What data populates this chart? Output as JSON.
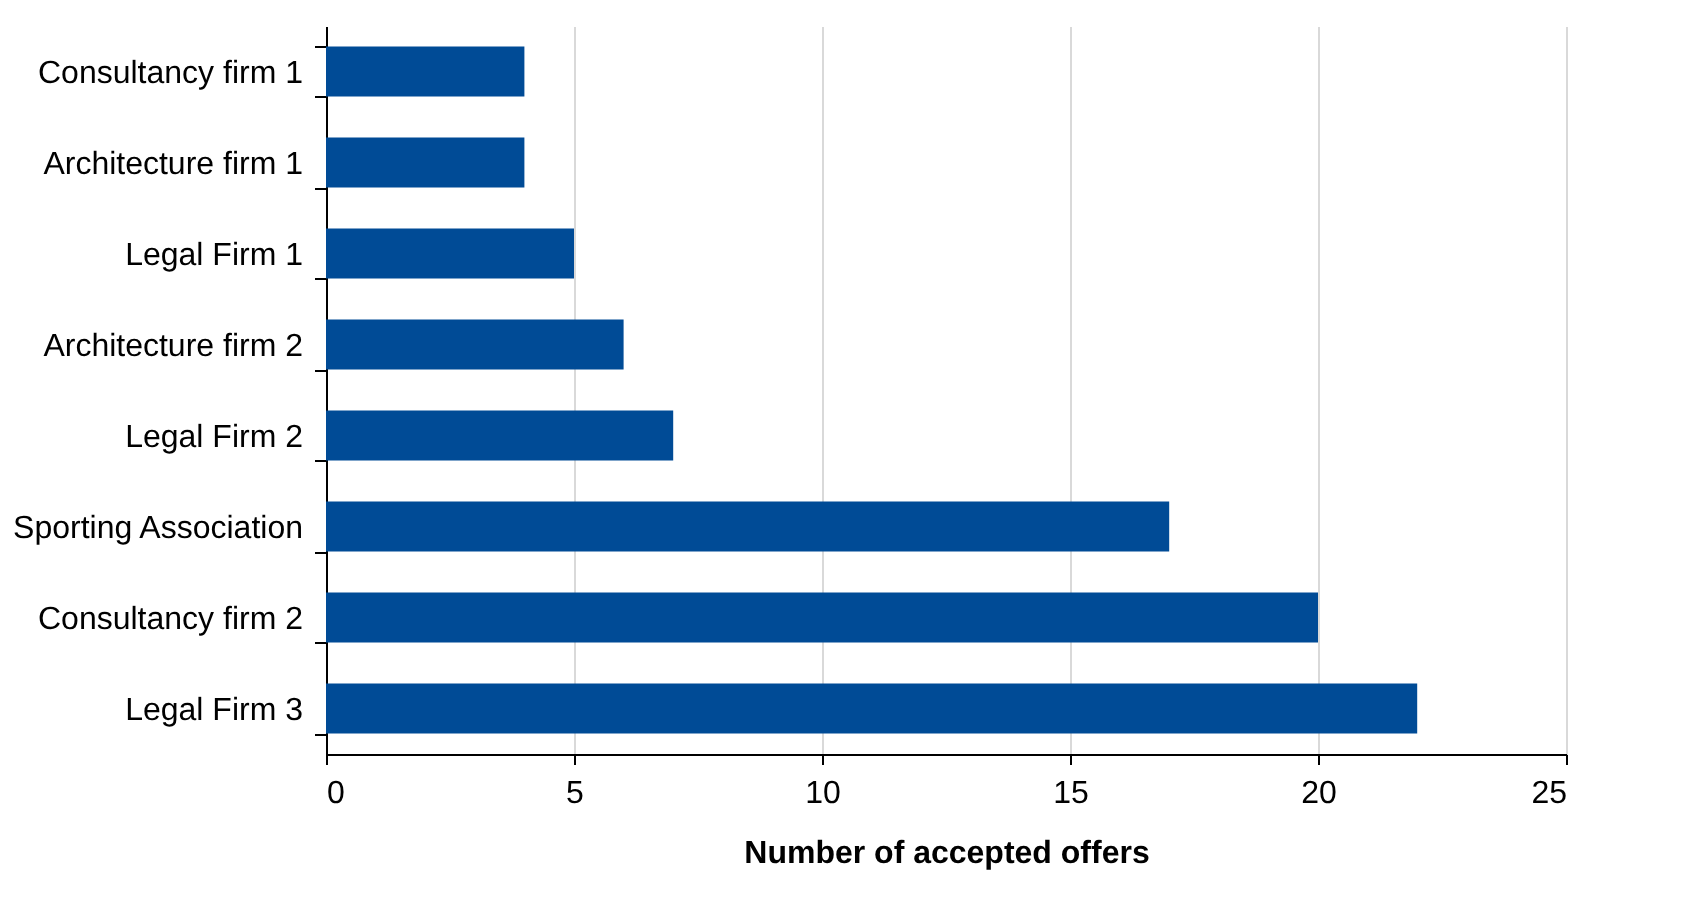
{
  "chart_data": {
    "type": "bar",
    "orientation": "horizontal",
    "xlabel": "Number of accepted offers",
    "categories": [
      "Consultancy firm 1",
      "Architecture firm 1",
      "Legal Firm 1",
      "Architecture firm 2",
      "Legal Firm 2",
      "Sporting Association",
      "Consultancy firm 2",
      "Legal Firm 3"
    ],
    "values": [
      4,
      4,
      5,
      6,
      7,
      17,
      20,
      22
    ],
    "color": "#004b96",
    "xlim": [
      0,
      25
    ],
    "xticks": [
      0,
      5,
      10,
      15,
      20,
      25
    ],
    "grid": "x"
  }
}
